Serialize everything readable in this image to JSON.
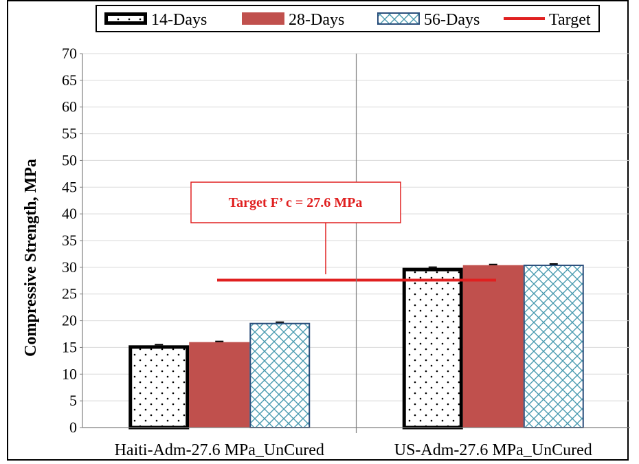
{
  "chart_data": {
    "type": "bar",
    "categories": [
      "Haiti-Adm-27.6 MPa_UnCured",
      "US-Adm-27.6 MPa_UnCured"
    ],
    "series": [
      {
        "name": "14-Days",
        "values": [
          15.4,
          29.9
        ]
      },
      {
        "name": "28-Days",
        "values": [
          16.0,
          30.4
        ]
      },
      {
        "name": "56-Days",
        "values": [
          19.6,
          30.5
        ]
      }
    ],
    "target": {
      "name": "Target",
      "value": 27.6
    },
    "annotation": "Target F’ c = 27.6 MPa",
    "xlabel": "",
    "ylabel": "Compressive Strength, MPa",
    "ylim": [
      0,
      70
    ],
    "yticks": [
      "0",
      "5",
      "10",
      "15",
      "20",
      "25",
      "30",
      "35",
      "40",
      "45",
      "50",
      "55",
      "60",
      "65",
      "70"
    ],
    "grid": "horizontal",
    "legend_position": "top",
    "colors": {
      "14-Days": "#ffffff",
      "28-Days": "#c0504d",
      "56-Days": "#ffffff",
      "56-Days-hatch": "#4a9bb0",
      "Target": "#e02020",
      "grid": "#d9d9d9"
    }
  }
}
